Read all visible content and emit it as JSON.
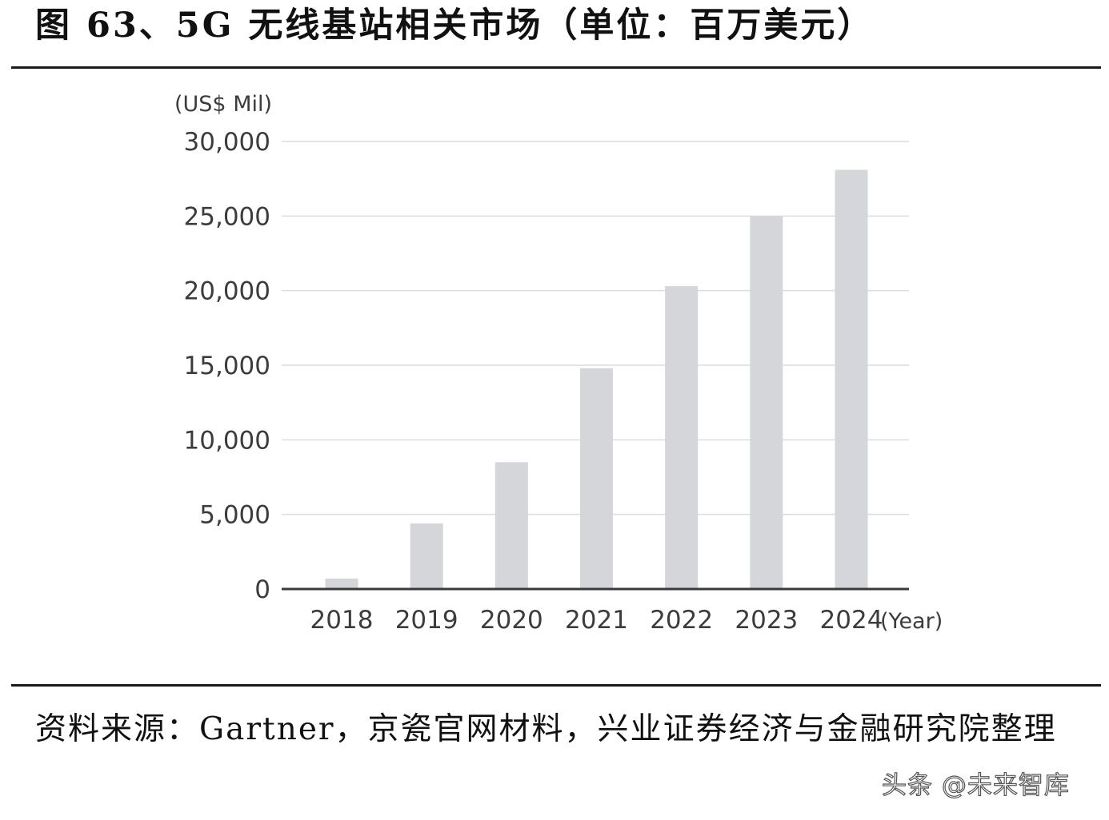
{
  "title": "图 63、5G 无线基站相关市场（单位：百万美元）",
  "source_text": "资料来源：Gartner，京瓷官网材料，兴业证券经济与金融研究院整理",
  "watermark": "头条 @未来智库",
  "colors": {
    "bar": "#d4d6d9",
    "grid": "#d9dce0",
    "axis": "#3a3a3a",
    "rule": "#1a1a1a"
  },
  "chart_data": {
    "type": "bar",
    "title": "",
    "ylabel": "(US$ Mil)",
    "xlabel": "(Year)",
    "categories": [
      "2018",
      "2019",
      "2020",
      "2021",
      "2022",
      "2023",
      "2024"
    ],
    "values": [
      700,
      4400,
      8500,
      14800,
      20300,
      25000,
      28100
    ],
    "ylim": [
      0,
      30000
    ],
    "yticks": [
      0,
      5000,
      10000,
      15000,
      20000,
      25000,
      30000
    ],
    "ytick_labels": [
      "0",
      "5,000",
      "10,000",
      "15,000",
      "20,000",
      "25,000",
      "30,000"
    ],
    "grid": true,
    "legend": "none"
  }
}
